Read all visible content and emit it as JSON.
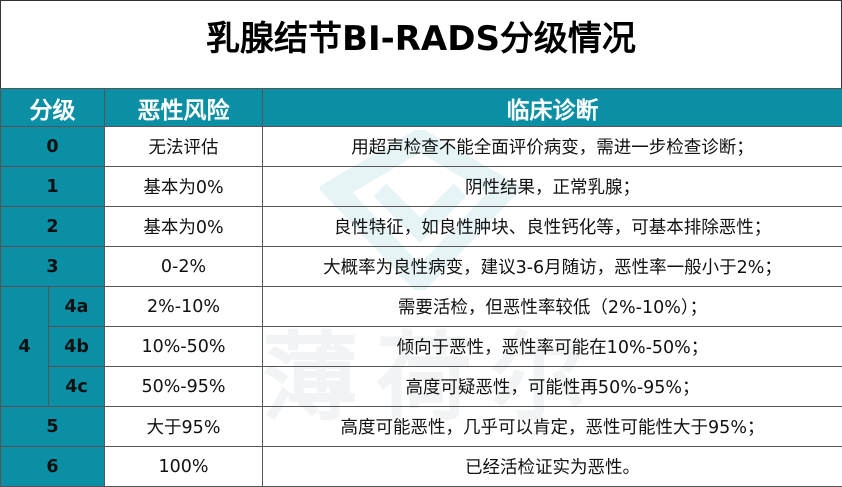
{
  "title": "乳腺结节BI-RADS分级情况",
  "header": {
    "grade": "分级",
    "risk": "恶性风险",
    "diagnosis": "临床诊断"
  },
  "rows": [
    {
      "grade": "0",
      "risk": "无法评估",
      "diagnosis": "用超声检查不能全面评价病变，需进一步检查诊断；"
    },
    {
      "grade": "1",
      "risk": "基本为0%",
      "diagnosis": "阴性结果，正常乳腺；"
    },
    {
      "grade": "2",
      "risk": "基本为0%",
      "diagnosis": "良性特征，如良性肿块、良性钙化等，可基本排除恶性；"
    },
    {
      "grade": "3",
      "risk": "0-2%",
      "diagnosis": "大概率为良性病变，建议3-6月随访，恶性率一般小于2%；"
    },
    {
      "grade": "4",
      "sub": "4a",
      "risk": "2%-10%",
      "diagnosis": "需要活检，但恶性率较低（2%-10%）；"
    },
    {
      "grade": "4",
      "sub": "4b",
      "risk": "10%-50%",
      "diagnosis": "倾向于恶性，恶性率可能在10%-50%；"
    },
    {
      "grade": "4",
      "sub": "4c",
      "risk": "50%-95%",
      "diagnosis": "高度可疑恶性，可能性再50%-95%；"
    },
    {
      "grade": "5",
      "risk": "大于95%",
      "diagnosis": "高度可能恶性，几乎可以肯定，恶性可能性大于95%；"
    },
    {
      "grade": "6",
      "risk": "100%",
      "diagnosis": "已经活检证实为恶性。"
    }
  ],
  "watermark": "薄荷尔",
  "colors": {
    "header_bg": "#0b8fa5",
    "header_text": "#ffffff"
  }
}
